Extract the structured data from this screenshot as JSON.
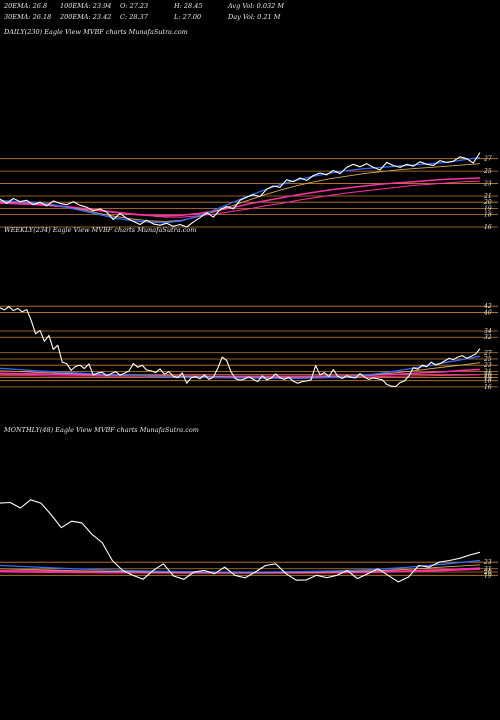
{
  "header": {
    "ema20": "20EMA: 26.8",
    "ema100": "100EMA: 23.94",
    "open": "O: 27.23",
    "high": "H: 28.45",
    "avg_vol": "Avg Vol: 0.032  M",
    "ema30": "30EMA: 26.18",
    "ema200": "200EMA: 23.42",
    "close": "C: 28.37",
    "low": "L: 27.00",
    "day_vol": "Day Vol: 0.21  M"
  },
  "colors": {
    "background": "#000000",
    "price": "#ffffff",
    "ema_fast": "#2f6bff",
    "ema_slow": "#ff2fa8",
    "ema_mid": "#d9a860",
    "level_line": "#c8822a"
  },
  "chart_data": [
    {
      "type": "line",
      "title": "DAILY(230) Eagle  View  MVBF charts MunafaSutra.com",
      "ticks": [
        "27",
        "25",
        "23",
        "21",
        "20",
        "19",
        "18",
        "16"
      ],
      "tick_values": [
        27,
        25,
        23,
        21,
        20,
        19,
        18,
        16
      ],
      "ylim": [
        15.2,
        28.4
      ],
      "series": [
        {
          "role": "price",
          "values": [
            20.5,
            19.8,
            20.6,
            20.1,
            20.3,
            19.6,
            20.0,
            19.4,
            20.2,
            19.8,
            19.6,
            20.1,
            19.5,
            19.2,
            18.6,
            18.9,
            18.4,
            17.2,
            18.2,
            17.4,
            16.9,
            16.4,
            17.1,
            16.5,
            16.3,
            16.6,
            16.1,
            16.4,
            16.0,
            16.8,
            17.5,
            18.3,
            17.6,
            18.8,
            19.3,
            18.9,
            20.3,
            20.8,
            21.2,
            20.9,
            22.1,
            22.6,
            22.4,
            23.6,
            23.3,
            23.9,
            23.5,
            24.3,
            24.7,
            24.4,
            25.1,
            24.6,
            25.6,
            26.1,
            25.7,
            26.2,
            25.6,
            25.2,
            26.4,
            25.9,
            25.6,
            26.1,
            25.8,
            26.5,
            26.1,
            25.9,
            26.7,
            26.4,
            26.6,
            27.3,
            27.0,
            26.3,
            28.0
          ]
        },
        {
          "role": "ema20",
          "values": [
            20.3,
            20.1,
            20.0,
            19.7,
            19.2,
            18.6,
            18.0,
            17.4,
            17.0,
            16.8,
            16.7,
            17.0,
            17.8,
            18.8,
            19.9,
            21.0,
            22.0,
            22.9,
            23.6,
            24.2,
            24.7,
            25.1,
            25.4,
            25.6,
            25.8,
            26.0,
            26.2,
            26.4,
            26.8,
            27.2
          ]
        },
        {
          "role": "ema30",
          "values": [
            20.1,
            20.0,
            19.9,
            19.6,
            19.2,
            18.8,
            18.2,
            17.7,
            17.3,
            17.0,
            16.9,
            17.1,
            17.7,
            18.5,
            19.4,
            20.3,
            21.2,
            22.0,
            22.7,
            23.3,
            23.8,
            24.2,
            24.6,
            24.9,
            25.2,
            25.4,
            25.6,
            25.8,
            26.0,
            26.2
          ]
        },
        {
          "role": "ema100",
          "values": [
            19.9,
            19.8,
            19.7,
            19.5,
            19.3,
            19.0,
            18.7,
            18.4,
            18.1,
            17.9,
            17.8,
            17.9,
            18.2,
            18.6,
            19.1,
            19.7,
            20.2,
            20.7,
            21.2,
            21.6,
            22.0,
            22.3,
            22.6,
            22.9,
            23.1,
            23.3,
            23.5,
            23.7,
            23.8,
            23.9
          ]
        },
        {
          "role": "ema200",
          "values": [
            19.8,
            19.7,
            19.6,
            19.4,
            19.2,
            18.9,
            18.6,
            18.3,
            18.0,
            17.8,
            17.6,
            17.6,
            17.8,
            18.1,
            18.5,
            18.9,
            19.4,
            19.8,
            20.3,
            20.7,
            21.1,
            21.5,
            21.8,
            22.1,
            22.4,
            22.7,
            22.9,
            23.1,
            23.3,
            23.4
          ]
        }
      ]
    },
    {
      "type": "line",
      "title": "WEEKLY(234) Eagle  View  MVBF charts MunafaSutra.com",
      "ticks": [
        "42",
        "40",
        "34",
        "32",
        "27",
        "25",
        "23",
        "21",
        "20",
        "19",
        "18",
        "16"
      ],
      "tick_values": [
        42,
        40,
        34,
        32,
        27,
        25,
        23,
        21,
        20,
        19,
        18,
        16
      ],
      "ylim": [
        15.0,
        44.0
      ],
      "series": [
        {
          "role": "price",
          "values": [
            41.5,
            40.8,
            41.9,
            40.6,
            41.3,
            40.2,
            40.9,
            37.5,
            33.1,
            34.2,
            30.7,
            32.6,
            28.1,
            29.4,
            24.0,
            23.5,
            21.3,
            22.6,
            23.0,
            21.9,
            23.4,
            19.8,
            20.5,
            20.7,
            19.6,
            20.3,
            20.9,
            19.8,
            20.4,
            21.1,
            23.5,
            22.3,
            23.0,
            21.4,
            21.2,
            20.6,
            21.8,
            20.1,
            20.9,
            19.4,
            19.0,
            20.5,
            17.2,
            18.9,
            19.3,
            18.6,
            19.9,
            18.4,
            19.1,
            22.0,
            25.6,
            24.5,
            20.8,
            18.6,
            18.2,
            18.5,
            19.3,
            18.4,
            17.7,
            19.6,
            18.3,
            18.8,
            20.2,
            18.9,
            18.4,
            19.1,
            17.8,
            17.2,
            17.7,
            17.9,
            18.3,
            22.9,
            19.9,
            20.6,
            19.3,
            21.6,
            19.4,
            18.7,
            19.6,
            19.1,
            18.9,
            20.3,
            19.2,
            18.4,
            18.9,
            18.6,
            18.3,
            16.8,
            16.3,
            16.1,
            17.4,
            17.9,
            19.5,
            22.2,
            21.7,
            23.0,
            22.5,
            24.0,
            23.1,
            23.5,
            24.3,
            25.2,
            24.8,
            25.6,
            26.1,
            25.2,
            25.9,
            26.6,
            28.3
          ]
        },
        {
          "role": "ema20",
          "values": [
            22.0,
            21.6,
            21.2,
            20.9,
            20.6,
            20.3,
            20.0,
            19.8,
            19.6,
            19.4,
            19.2,
            19.1,
            19.0,
            18.9,
            18.9,
            18.8,
            18.8,
            18.8,
            18.9,
            19.1,
            19.5,
            20.1,
            20.9,
            21.8,
            22.8,
            23.8,
            24.8,
            25.9
          ]
        },
        {
          "role": "ema30",
          "values": [
            21.2,
            21.0,
            20.7,
            20.5,
            20.3,
            20.1,
            19.9,
            19.7,
            19.6,
            19.5,
            19.4,
            19.3,
            19.2,
            19.1,
            19.1,
            19.0,
            19.0,
            19.0,
            19.1,
            19.2,
            19.5,
            19.9,
            20.4,
            21.0,
            21.7,
            22.4,
            23.1,
            23.8
          ]
        },
        {
          "role": "ema100",
          "values": [
            20.4,
            20.3,
            20.2,
            20.1,
            20.0,
            19.9,
            19.8,
            19.7,
            19.6,
            19.6,
            19.5,
            19.5,
            19.4,
            19.4,
            19.4,
            19.4,
            19.4,
            19.4,
            19.5,
            19.5,
            19.6,
            19.8,
            20.0,
            20.3,
            20.6,
            20.9,
            21.3,
            21.6
          ]
        },
        {
          "role": "ema200",
          "values": [
            19.6,
            19.6,
            19.6,
            19.5,
            19.5,
            19.5,
            19.4,
            19.4,
            19.4,
            19.3,
            19.3,
            19.3,
            19.3,
            19.3,
            19.2,
            19.2,
            19.2,
            19.2,
            19.2,
            19.2,
            19.3,
            19.3,
            19.4,
            19.5,
            19.6,
            19.7,
            19.8,
            19.9
          ]
        }
      ]
    },
    {
      "type": "line",
      "title": "MONTHLY(48) Eagle  View  MVBF charts MunafaSutra.com",
      "ticks": [
        "23",
        "21",
        "20",
        "19"
      ],
      "tick_values": [
        23,
        21,
        20,
        19
      ],
      "ylim": [
        13.0,
        45.0
      ],
      "series": [
        {
          "role": "price",
          "values": [
            41.0,
            41.2,
            39.5,
            42.0,
            41.0,
            37.5,
            33.5,
            35.5,
            35.0,
            31.5,
            29.0,
            23.5,
            20.5,
            19.0,
            17.8,
            20.5,
            22.5,
            18.8,
            17.8,
            20.0,
            20.5,
            19.5,
            21.5,
            19.0,
            18.2,
            20.0,
            22.0,
            22.5,
            19.5,
            17.5,
            17.6,
            19.0,
            18.3,
            19.0,
            20.5,
            18.0,
            19.5,
            21.0,
            19.0,
            17.0,
            18.5,
            22.0,
            21.5,
            23.0,
            23.5,
            24.2,
            25.2,
            26.0
          ]
        },
        {
          "role": "ema20",
          "values": [
            22.0,
            21.5,
            21.0,
            20.6,
            20.3,
            20.1,
            20.0,
            20.0,
            20.1,
            20.3,
            20.7,
            21.4,
            22.4,
            23.5
          ]
        },
        {
          "role": "ema30",
          "values": [
            21.0,
            20.7,
            20.4,
            20.2,
            20.0,
            19.9,
            19.8,
            19.8,
            19.9,
            20.0,
            20.3,
            20.8,
            21.5,
            22.2
          ]
        },
        {
          "role": "ema100",
          "values": [
            20.4,
            20.3,
            20.2,
            20.1,
            20.0,
            19.9,
            19.8,
            19.8,
            19.8,
            19.9,
            20.0,
            20.3,
            20.7,
            21.2
          ]
        },
        {
          "role": "ema200",
          "values": [
            20.0,
            19.9,
            19.8,
            19.7,
            19.7,
            19.6,
            19.6,
            19.6,
            19.6,
            19.7,
            19.8,
            20.1,
            20.4,
            20.8
          ]
        }
      ]
    }
  ]
}
